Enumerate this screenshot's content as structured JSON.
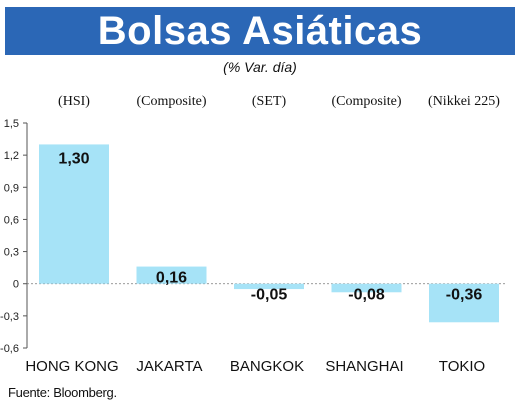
{
  "header": {
    "title": "Bolsas Asiáticas",
    "subtitle": "(% Var. día)"
  },
  "footer": {
    "source": "Fuente: Bloomberg."
  },
  "colors": {
    "banner": "#2b67b6",
    "bar": "#a6e3f7",
    "label_bg": "#a6e3f7",
    "axis": "#555555"
  },
  "chart_data": {
    "type": "bar",
    "title": "Bolsas Asiáticas",
    "subtitle": "(% Var. día)",
    "categories": [
      "HONG KONG",
      "JAKARTA",
      "BANGKOK",
      "SHANGHAI",
      "TOKIO"
    ],
    "index_labels": [
      "(HSI)",
      "(Composite)",
      "(SET)",
      "(Composite)",
      "(Nikkei 225)"
    ],
    "values": [
      1.3,
      0.16,
      -0.05,
      -0.08,
      -0.36
    ],
    "value_labels": [
      "1,30",
      "0,16",
      "-0,05",
      "-0,08",
      "-0,36"
    ],
    "ylim": [
      -0.6,
      1.5
    ],
    "yticks": [
      1.5,
      1.2,
      0.9,
      0.6,
      0.3,
      0,
      -0.3,
      -0.6
    ],
    "ytick_labels": [
      "1,5",
      "1,2",
      "0,9",
      "0,6",
      "0,3",
      "0",
      "-0,3",
      "-0,6"
    ],
    "xlabel": "",
    "ylabel": "",
    "grid": false,
    "source": "Fuente: Bloomberg."
  }
}
